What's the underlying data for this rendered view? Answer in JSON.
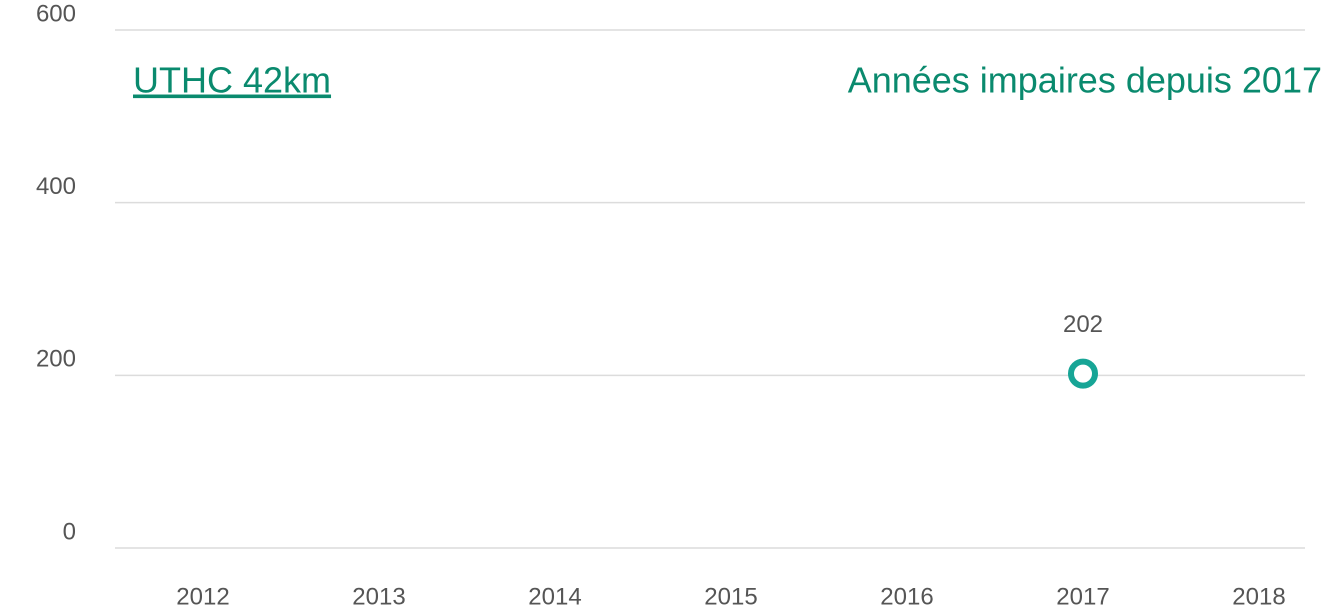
{
  "chart_data": {
    "type": "line",
    "title": "UTHC 42km",
    "subtitle": "Années impaires depuis 2017",
    "categories": [
      "2012",
      "2013",
      "2014",
      "2015",
      "2016",
      "2017",
      "2018"
    ],
    "series": [
      {
        "name": "UTHC 42km",
        "color": "#17a596",
        "values": [
          null,
          null,
          null,
          null,
          null,
          202,
          null
        ]
      }
    ],
    "ylim": [
      0,
      600
    ],
    "yticks": [
      0,
      200,
      400,
      600
    ],
    "grid": true
  }
}
